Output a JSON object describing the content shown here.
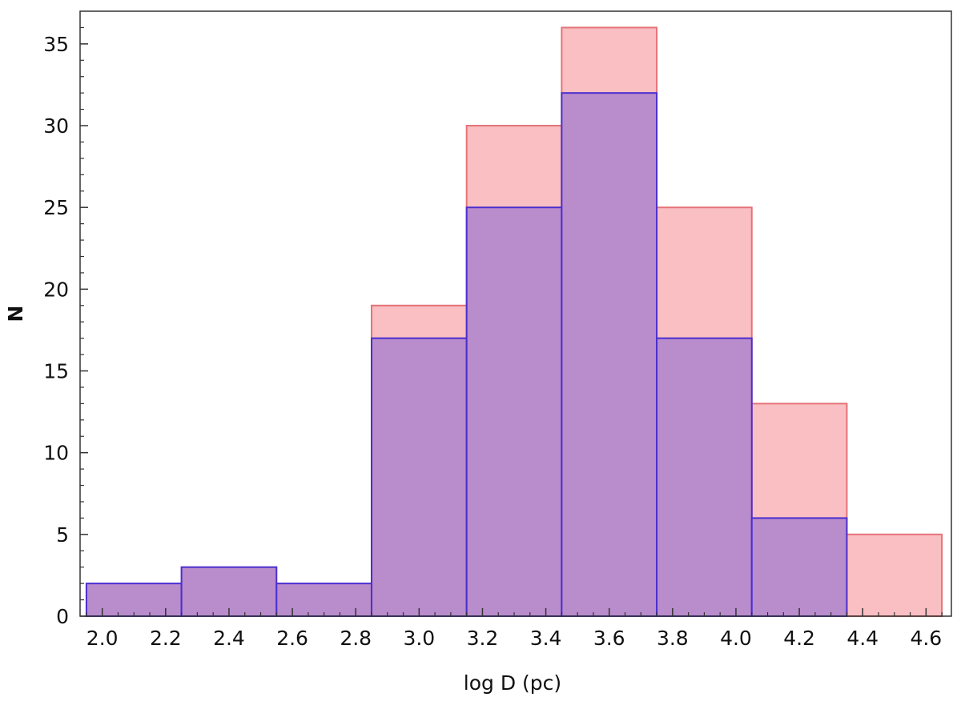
{
  "chart_data": {
    "type": "bar",
    "title": "",
    "xlabel": "log D (pc)",
    "ylabel": "N",
    "xlim": [
      1.93,
      4.68
    ],
    "ylim": [
      0,
      37
    ],
    "grid": false,
    "bin_edges": [
      1.95,
      2.25,
      2.55,
      2.85,
      3.15,
      3.45,
      3.75,
      4.05,
      4.35,
      4.65
    ],
    "x_ticks": [
      "2.0",
      "2.2",
      "2.4",
      "2.6",
      "2.8",
      "3.0",
      "3.2",
      "3.4",
      "3.6",
      "3.8",
      "4.0",
      "4.2",
      "4.4",
      "4.6"
    ],
    "y_ticks": [
      "0",
      "5",
      "10",
      "15",
      "20",
      "25",
      "30",
      "35"
    ],
    "series": [
      {
        "values": [
          0,
          0,
          0,
          19,
          30,
          36,
          25,
          13,
          5
        ],
        "fill": "#f9bfc2",
        "stroke": "#e57378"
      },
      {
        "values": [
          2,
          3,
          2,
          17,
          25,
          32,
          17,
          6,
          0
        ],
        "fill": "#b98ccb",
        "stroke": "#4b2fcf"
      }
    ]
  }
}
